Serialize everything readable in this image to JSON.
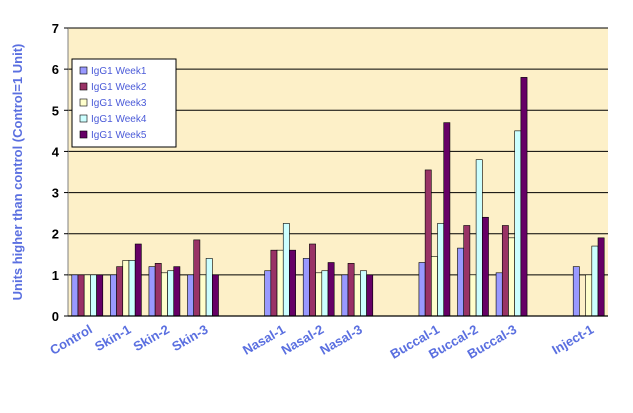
{
  "chart_data": {
    "type": "bar",
    "ylabel": "Units higher than control (Control=1 Unit)",
    "ylim": [
      0,
      7
    ],
    "yticks": [
      0,
      1,
      2,
      3,
      4,
      5,
      6,
      7
    ],
    "grid": true,
    "legend_position": "top-left",
    "categories": [
      "Control",
      "Skin-1",
      "Skin-2",
      "Skin-3",
      "",
      "Nasal-1",
      "Nasal-2",
      "Nasal-3",
      "",
      "Buccal-1",
      "Buccal-2",
      "Buccal-3",
      "",
      "Inject-1"
    ],
    "series": [
      {
        "name": "IgG1 Week1",
        "color": "#9999ff",
        "values": [
          1,
          1,
          1.2,
          1,
          null,
          1.1,
          1.4,
          1,
          null,
          1.3,
          1.65,
          1.05,
          null,
          1.2
        ]
      },
      {
        "name": "IgG1 Week2",
        "color": "#993366",
        "values": [
          1,
          1.2,
          1.28,
          1.85,
          null,
          1.6,
          1.75,
          1.28,
          null,
          3.55,
          2.2,
          2.2,
          null,
          null
        ]
      },
      {
        "name": "IgG1 Week3",
        "color": "#ffffcc",
        "values": [
          1,
          1.35,
          1.05,
          1,
          null,
          1.6,
          1.05,
          1,
          null,
          1.45,
          1,
          1.9,
          null,
          1
        ]
      },
      {
        "name": "IgG1 Week4",
        "color": "#ccffff",
        "values": [
          1,
          1.35,
          1.1,
          1.4,
          null,
          2.25,
          1.1,
          1.1,
          null,
          2.25,
          3.8,
          4.5,
          null,
          1.7
        ]
      },
      {
        "name": "IgG1 Week5",
        "color": "#660066",
        "values": [
          1,
          1.75,
          1.2,
          1,
          null,
          1.6,
          1.3,
          1,
          null,
          4.7,
          2.4,
          5.8,
          null,
          1.9
        ]
      }
    ]
  }
}
